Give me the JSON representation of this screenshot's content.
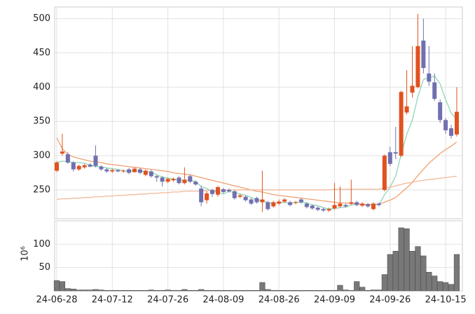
{
  "chart_data": [
    {
      "type": "candlestick",
      "categories": [
        "24-06-28",
        null,
        null,
        null,
        null,
        null,
        null,
        null,
        null,
        null,
        "24-07-12",
        null,
        null,
        null,
        null,
        null,
        null,
        null,
        null,
        null,
        "24-07-26",
        null,
        null,
        null,
        null,
        null,
        null,
        null,
        null,
        null,
        "24-08-09",
        null,
        null,
        null,
        null,
        null,
        null,
        null,
        null,
        null,
        "24-08-26",
        null,
        null,
        null,
        null,
        null,
        null,
        null,
        null,
        null,
        "24-09-09",
        null,
        null,
        null,
        null,
        null,
        null,
        null,
        null,
        null,
        "24-09-26",
        null,
        null,
        null,
        null,
        null,
        null,
        null,
        null,
        null,
        "24-10-15",
        null,
        null
      ],
      "open": [
        278,
        303,
        302,
        290,
        280,
        283,
        287,
        300,
        284,
        280,
        277,
        279,
        277,
        280,
        276,
        280,
        272,
        277,
        270,
        268,
        262,
        264,
        268,
        260,
        270,
        262,
        252,
        235,
        250,
        243,
        251,
        250,
        248,
        240,
        240,
        236,
        238,
        232,
        232,
        226,
        230,
        233,
        232,
        231,
        236,
        230,
        227,
        224,
        222,
        220,
        223,
        226,
        228,
        230,
        232,
        227,
        229,
        222,
        230,
        250,
        305,
        305,
        300,
        363,
        392,
        400,
        468,
        420,
        407,
        378,
        352,
        340,
        331
      ],
      "high": [
        292,
        332,
        305,
        292,
        287,
        288,
        289,
        315,
        286,
        282,
        281,
        280,
        280,
        282,
        283,
        282,
        280,
        279,
        272,
        270,
        268,
        268,
        270,
        283,
        272,
        264,
        256,
        248,
        252,
        256,
        253,
        252,
        250,
        244,
        242,
        238,
        240,
        278,
        234,
        234,
        236,
        238,
        234,
        234,
        238,
        232,
        229,
        226,
        224,
        224,
        260,
        255,
        230,
        265,
        234,
        232,
        231,
        232,
        232,
        302,
        313,
        342,
        395,
        425,
        460,
        507,
        500,
        460,
        420,
        382,
        355,
        345,
        400
      ],
      "low": [
        276,
        300,
        288,
        277,
        278,
        281,
        283,
        283,
        278,
        275,
        275,
        276,
        275,
        273,
        275,
        273,
        270,
        268,
        262,
        255,
        260,
        262,
        258,
        258,
        260,
        256,
        226,
        230,
        240,
        240,
        245,
        246,
        236,
        238,
        233,
        228,
        230,
        218,
        220,
        224,
        228,
        231,
        226,
        229,
        230,
        223,
        221,
        219,
        218,
        218,
        221,
        224,
        224,
        228,
        226,
        225,
        224,
        220,
        226,
        248,
        285,
        295,
        298,
        360,
        385,
        398,
        420,
        402,
        380,
        348,
        332,
        325,
        328
      ],
      "close": [
        290,
        306,
        290,
        280,
        285,
        286,
        284,
        285,
        280,
        277,
        279,
        277,
        278,
        275,
        281,
        275,
        278,
        270,
        268,
        262,
        266,
        266,
        260,
        265,
        262,
        258,
        232,
        245,
        244,
        254,
        247,
        248,
        238,
        242,
        235,
        230,
        232,
        236,
        222,
        232,
        233,
        236,
        228,
        232,
        232,
        225,
        223,
        221,
        220,
        222,
        228,
        230,
        226,
        232,
        228,
        230,
        226,
        230,
        228,
        300,
        288,
        303,
        393,
        372,
        402,
        460,
        428,
        408,
        383,
        352,
        337,
        329,
        364
      ],
      "up_color": "#e0521e",
      "down_color": "#7070b0",
      "lines": [
        {
          "color": "#8fd6b4",
          "values": [
            290,
            292,
            291,
            290,
            290,
            289,
            286,
            284,
            284,
            282,
            281,
            280,
            278,
            277,
            278,
            277,
            277,
            276,
            272,
            269,
            267,
            266,
            264,
            264,
            264,
            262,
            255,
            252,
            248,
            247,
            244,
            248,
            246,
            244,
            242,
            239,
            235,
            235,
            231,
            230,
            231,
            232,
            230,
            232,
            232,
            231,
            228,
            227,
            224,
            222,
            223,
            224,
            225,
            228,
            229,
            229,
            228,
            229,
            228,
            243,
            254,
            270,
            302,
            331,
            352,
            386,
            411,
            414,
            416,
            405,
            382,
            362,
            353
          ]
        },
        {
          "color": "#f0a070",
          "values": [
            326,
            310,
            302,
            298,
            296,
            294,
            292,
            291,
            290,
            288,
            287,
            286,
            285,
            284,
            283,
            282,
            281,
            280,
            279,
            278,
            277,
            275,
            274,
            273,
            272,
            270,
            268,
            266,
            264,
            262,
            260,
            258,
            256,
            254,
            252,
            250,
            248,
            247,
            245,
            243,
            242,
            241,
            240,
            239,
            238,
            237,
            236,
            235,
            234,
            233,
            232,
            231,
            231,
            230,
            230,
            229,
            229,
            229,
            229,
            232,
            235,
            239,
            246,
            253,
            261,
            271,
            280,
            289,
            296,
            303,
            309,
            314,
            320
          ]
        },
        {
          "color": "#f2b898",
          "values": [
            236,
            237,
            237,
            238,
            238,
            239,
            239,
            240,
            240,
            241,
            241,
            242,
            242,
            243,
            243,
            244,
            244,
            245,
            245,
            246,
            246,
            247,
            247,
            248,
            248,
            248,
            248,
            249,
            249,
            249,
            249,
            250,
            250,
            250,
            250,
            250,
            250,
            250,
            250,
            250,
            250,
            250,
            250,
            250,
            250,
            250,
            250,
            250,
            250,
            250,
            251,
            251,
            251,
            251,
            251,
            251,
            251,
            251,
            251,
            253,
            254,
            256,
            258,
            260,
            261,
            263,
            264,
            265,
            266,
            267,
            268,
            269,
            270
          ]
        }
      ],
      "ylim": [
        208,
        517
      ],
      "yticks": [
        250,
        300,
        350,
        400,
        450,
        500
      ],
      "grid": true
    },
    {
      "type": "bar",
      "ylabel": "10⁶",
      "color": "#787878",
      "values": [
        22,
        20,
        5,
        4,
        2,
        2,
        2,
        3,
        2,
        1,
        1,
        1,
        1,
        1,
        1,
        1,
        1,
        2,
        1,
        1,
        2,
        1,
        1,
        3,
        1,
        1,
        3,
        1,
        1,
        1,
        1,
        1,
        1,
        1,
        1,
        1,
        1,
        18,
        3,
        1,
        1,
        1,
        1,
        1,
        1,
        1,
        1,
        1,
        1,
        1,
        1,
        12,
        2,
        1,
        20,
        8,
        1,
        2,
        2,
        35,
        78,
        85,
        135,
        133,
        85,
        95,
        75,
        40,
        32,
        20,
        18,
        14,
        78
      ],
      "ylim": [
        0,
        150
      ],
      "yticks": [
        50,
        100
      ],
      "grid": true
    }
  ]
}
